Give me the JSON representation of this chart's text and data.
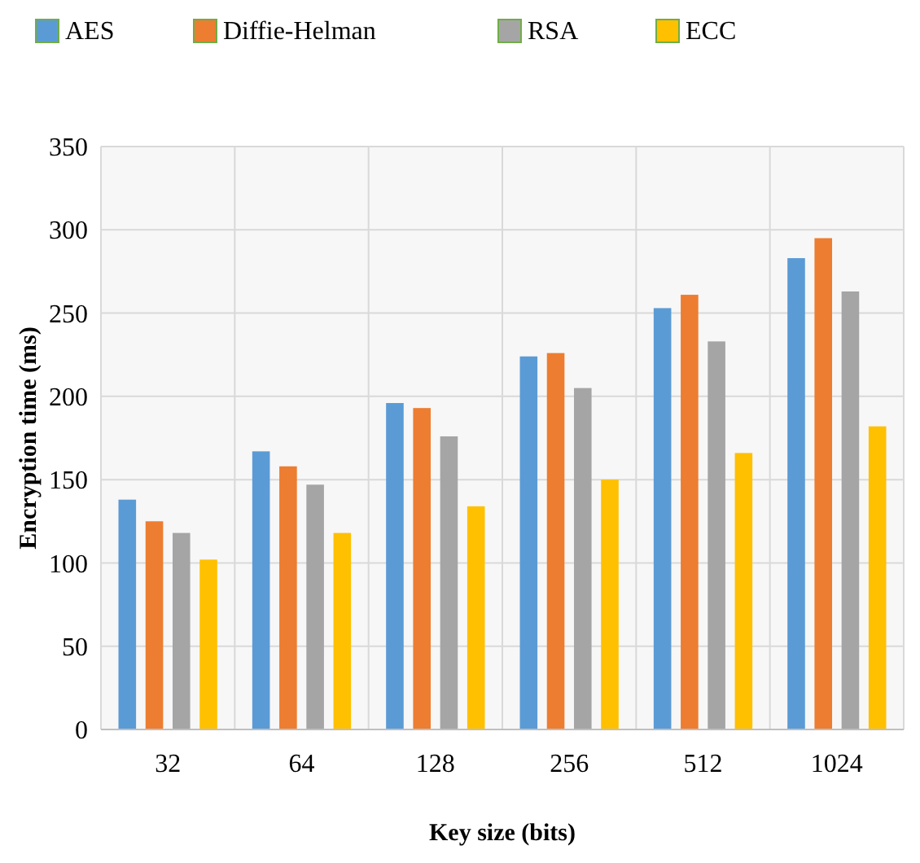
{
  "chart_data": {
    "type": "bar",
    "xlabel": "Key size (bits)",
    "ylabel": "Encryption time (ms)",
    "categories": [
      "32",
      "64",
      "128",
      "256",
      "512",
      "1024"
    ],
    "series": [
      {
        "name": "AES",
        "color": "#5b9bd5",
        "values": [
          138,
          167,
          196,
          224,
          253,
          283
        ]
      },
      {
        "name": "Diffie-Helman",
        "color": "#ed7d31",
        "values": [
          125,
          158,
          193,
          226,
          261,
          295
        ]
      },
      {
        "name": "RSA",
        "color": "#a5a5a5",
        "values": [
          118,
          147,
          176,
          205,
          233,
          263
        ]
      },
      {
        "name": "ECC",
        "color": "#ffc000",
        "values": [
          102,
          118,
          134,
          150,
          166,
          182
        ]
      }
    ],
    "ylim": [
      0,
      350
    ],
    "yticks": [
      0,
      50,
      100,
      150,
      200,
      250,
      300,
      350
    ],
    "grid": true,
    "legend": "top"
  }
}
